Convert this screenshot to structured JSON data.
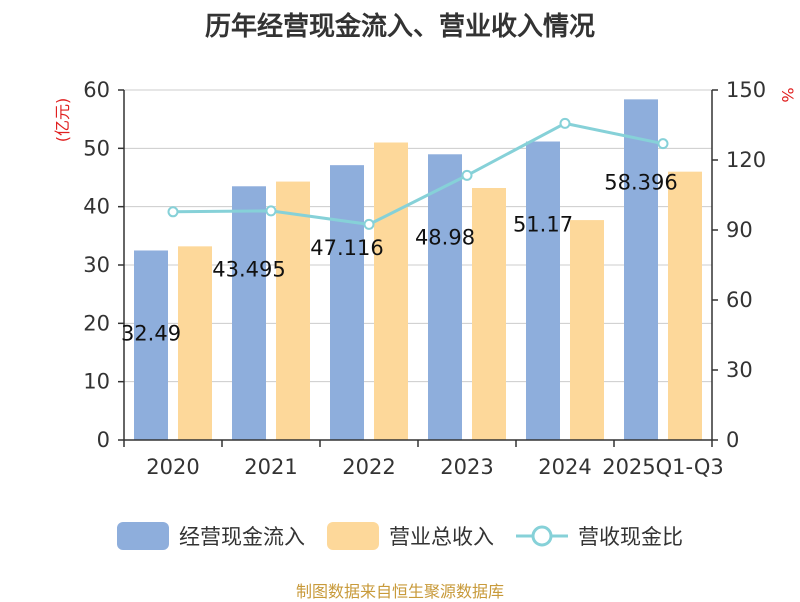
{
  "chart_data": {
    "type": "bar",
    "title": "历年经营现金流入、营业收入情况",
    "left_unit": "(亿元)",
    "right_unit": "%",
    "categories": [
      "2020",
      "2021",
      "2022",
      "2023",
      "2024",
      "2025Q1-Q3"
    ],
    "series": [
      {
        "name": "经营现金流入",
        "kind": "bar",
        "axis": "left",
        "color": "#8eaedc",
        "values": [
          32.49,
          43.495,
          47.116,
          48.98,
          51.17,
          58.396
        ],
        "data_labels": [
          "32.49",
          "43.495",
          "47.116",
          "48.98",
          "51.17",
          "58.396"
        ]
      },
      {
        "name": "营业总收入",
        "kind": "bar",
        "axis": "left",
        "color": "#fdd89a",
        "values": [
          33.2,
          44.3,
          51.0,
          43.2,
          37.7,
          46.0
        ]
      },
      {
        "name": "营收现金比",
        "kind": "line",
        "axis": "right",
        "color": "#86d1d8",
        "values": [
          97.8,
          98.2,
          92.4,
          113.4,
          135.7,
          127.0
        ]
      }
    ],
    "ylim_left": [
      0,
      60
    ],
    "yticks_left": [
      0,
      10,
      20,
      30,
      40,
      50,
      60
    ],
    "ylim_right": [
      0,
      150
    ],
    "yticks_right": [
      0,
      30,
      60,
      90,
      120,
      150
    ],
    "grid": true,
    "legend_position": "bottom"
  },
  "source": "制图数据来自恒生聚源数据库"
}
